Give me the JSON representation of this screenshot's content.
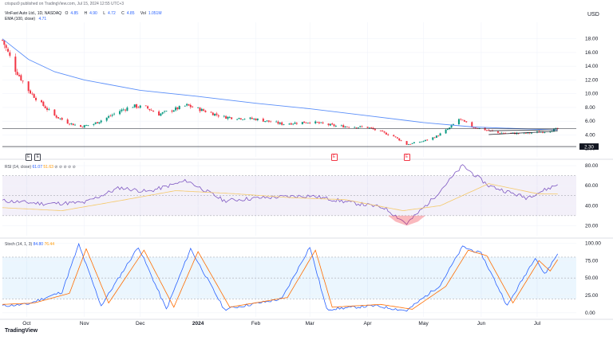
{
  "header": {
    "published": "crispus9 published on TradingView.com, Jul 15, 2024 12:55 UTC+3",
    "currency": "USD"
  },
  "legend": {
    "symbol": "VinFast Auto Ltd., 1D, NASDAQ",
    "ohlc": [
      {
        "label": "O",
        "value": "4.85"
      },
      {
        "label": "H",
        "value": "4.90"
      },
      {
        "label": "L",
        "value": "4.72"
      },
      {
        "label": "C",
        "value": "4.85"
      },
      {
        "label": "Vol",
        "value": "1.051M"
      }
    ],
    "ema_label": "EMA (100, close)",
    "ema_value": "4.71"
  },
  "rsi_legend": {
    "label": "RSI (14, close)",
    "v1": "61.07",
    "v2": "51.63",
    "dots": "⊘ ⊘ ⊘ ⊘ ⊘"
  },
  "stoch_legend": {
    "label": "Stoch (14, 1, 3)",
    "v1": "84.80",
    "v2": "76.44"
  },
  "price_tag": "2.30",
  "events": [
    {
      "label": "E",
      "color": "#434651",
      "date": "2023-10-02"
    },
    {
      "label": "E",
      "color": "#434651",
      "date": "2023-10-07"
    },
    {
      "label": "E",
      "color": "#f23645",
      "date": "2024-03-14"
    },
    {
      "label": "E",
      "color": "#f23645",
      "date": "2024-04-22"
    }
  ],
  "logo": {
    "text": "TradingView"
  },
  "colors": {
    "up": "#089981",
    "down": "#f23645",
    "ema": "#5b8ff9",
    "rsi": "#7e57c2",
    "rsi_ma": "#f5c96a",
    "stoch_k": "#2962ff",
    "stoch_d": "#ff6d00",
    "band": "#7e57c2",
    "stoch_band": "#2196f3"
  },
  "chart_data": [
    {
      "type": "candlestick",
      "title": "VinFast Auto Ltd., 1D, NASDAQ",
      "x_ticks": [
        "Oct",
        "Nov",
        "Dec",
        "2024",
        "Feb",
        "Mar",
        "Apr",
        "May",
        "Jun",
        "Jul"
      ],
      "y_ticks": [
        "2.00",
        "4.00",
        "6.00",
        "8.00",
        "10.00",
        "12.00",
        "14.00",
        "16.00",
        "18.00"
      ],
      "ylim": [
        0.8,
        20.4
      ],
      "x_range": [
        "2023-09-18",
        "2024-07-22"
      ],
      "close_anchors": [
        [
          "2023-09-18",
          17.8
        ],
        [
          "2023-09-25",
          13.5
        ],
        [
          "2023-10-02",
          10.5
        ],
        [
          "2023-10-09",
          8.5
        ],
        [
          "2023-10-16",
          6.8
        ],
        [
          "2023-10-23",
          5.8
        ],
        [
          "2023-10-30",
          5.2
        ],
        [
          "2023-11-06",
          5.6
        ],
        [
          "2023-11-13",
          6.5
        ],
        [
          "2023-11-20",
          7.5
        ],
        [
          "2023-11-27",
          8.2
        ],
        [
          "2023-12-04",
          8.0
        ],
        [
          "2023-12-11",
          7.0
        ],
        [
          "2023-12-18",
          7.6
        ],
        [
          "2023-12-26",
          8.3
        ],
        [
          "2024-01-02",
          7.7
        ],
        [
          "2024-01-15",
          6.6
        ],
        [
          "2024-02-01",
          6.3
        ],
        [
          "2024-02-15",
          5.6
        ],
        [
          "2024-03-01",
          5.9
        ],
        [
          "2024-03-15",
          5.3
        ],
        [
          "2024-04-01",
          5.1
        ],
        [
          "2024-04-15",
          3.8
        ],
        [
          "2024-04-22",
          2.6
        ],
        [
          "2024-05-01",
          3.1
        ],
        [
          "2024-05-08",
          3.8
        ],
        [
          "2024-05-15",
          5.0
        ],
        [
          "2024-05-20",
          6.3
        ],
        [
          "2024-05-27",
          5.2
        ],
        [
          "2024-06-10",
          4.3
        ],
        [
          "2024-06-24",
          4.2
        ],
        [
          "2024-07-05",
          4.5
        ],
        [
          "2024-07-12",
          4.85
        ]
      ],
      "ema_anchors": [
        [
          "2023-09-18",
          18.0
        ],
        [
          "2023-10-02",
          15.0
        ],
        [
          "2023-10-16",
          13.2
        ],
        [
          "2023-11-01",
          12.0
        ],
        [
          "2023-12-01",
          10.5
        ],
        [
          "2024-01-01",
          9.6
        ],
        [
          "2024-02-01",
          8.6
        ],
        [
          "2024-03-01",
          7.8
        ],
        [
          "2024-04-01",
          6.8
        ],
        [
          "2024-05-01",
          5.8
        ],
        [
          "2024-05-28",
          5.15
        ],
        [
          "2024-07-12",
          4.71
        ]
      ],
      "hlines": [
        4.9,
        2.3
      ],
      "annotations": [
        "2.30"
      ]
    },
    {
      "type": "line",
      "title": "RSI (14, close)",
      "y_ticks": [
        "20.00",
        "40.00",
        "60.00",
        "80.00"
      ],
      "ylim": [
        10,
        84
      ],
      "bands": [
        30,
        50,
        70
      ],
      "series": [
        {
          "name": "",
          "anchors": [
            [
              "2023-09-18",
              45
            ],
            [
              "2023-10-10",
              42
            ],
            [
              "2023-11-01",
              43
            ],
            [
              "2023-11-20",
              58
            ],
            [
              "2023-12-05",
              54
            ],
            [
              "2023-12-26",
              65
            ],
            [
              "2024-01-15",
              45
            ],
            [
              "2024-02-05",
              48
            ],
            [
              "2024-03-01",
              50
            ],
            [
              "2024-03-20",
              44
            ],
            [
              "2024-04-10",
              38
            ],
            [
              "2024-04-22",
              22
            ],
            [
              "2024-05-05",
              45
            ],
            [
              "2024-05-22",
              80
            ],
            [
              "2024-06-05",
              60
            ],
            [
              "2024-06-25",
              48
            ],
            [
              "2024-07-12",
              61.07
            ]
          ]
        },
        {
          "name": "",
          "anchors": [
            [
              "2023-09-18",
              38
            ],
            [
              "2023-10-20",
              35
            ],
            [
              "2023-11-20",
              45
            ],
            [
              "2023-12-20",
              55
            ],
            [
              "2024-01-20",
              52
            ],
            [
              "2024-02-20",
              48
            ],
            [
              "2024-03-20",
              46
            ],
            [
              "2024-04-20",
              35
            ],
            [
              "2024-05-10",
              40
            ],
            [
              "2024-06-05",
              62
            ],
            [
              "2024-07-01",
              52
            ],
            [
              "2024-07-12",
              51.63
            ]
          ]
        }
      ]
    },
    {
      "type": "line",
      "title": "Stoch (14, 1, 3)",
      "y_ticks": [
        "0.00",
        "25.00",
        "50.00",
        "75.00",
        "100.00"
      ],
      "ylim": [
        -6,
        104
      ],
      "bands": [
        20,
        50,
        80
      ],
      "series": [
        {
          "name": "",
          "anchors": [
            [
              "2023-09-18",
              10
            ],
            [
              "2023-10-01",
              12
            ],
            [
              "2023-10-20",
              30
            ],
            [
              "2023-10-29",
              98
            ],
            [
              "2023-11-10",
              10
            ],
            [
              "2023-11-30",
              95
            ],
            [
              "2023-12-15",
              5
            ],
            [
              "2023-12-28",
              92
            ],
            [
              "2024-01-15",
              5
            ],
            [
              "2024-02-15",
              20
            ],
            [
              "2024-03-01",
              95
            ],
            [
              "2024-03-10",
              5
            ],
            [
              "2024-04-05",
              10
            ],
            [
              "2024-04-22",
              3
            ],
            [
              "2024-05-10",
              40
            ],
            [
              "2024-05-22",
              95
            ],
            [
              "2024-06-01",
              85
            ],
            [
              "2024-06-15",
              10
            ],
            [
              "2024-06-30",
              80
            ],
            [
              "2024-07-05",
              55
            ],
            [
              "2024-07-12",
              84.8
            ]
          ]
        },
        {
          "name": "",
          "anchors": [
            [
              "2023-09-18",
              12
            ],
            [
              "2023-10-05",
              14
            ],
            [
              "2023-10-24",
              28
            ],
            [
              "2023-11-02",
              92
            ],
            [
              "2023-11-14",
              14
            ],
            [
              "2023-12-03",
              90
            ],
            [
              "2023-12-19",
              8
            ],
            [
              "2024-01-01",
              88
            ],
            [
              "2024-01-18",
              8
            ],
            [
              "2024-02-18",
              22
            ],
            [
              "2024-03-04",
              90
            ],
            [
              "2024-03-13",
              8
            ],
            [
              "2024-04-08",
              12
            ],
            [
              "2024-04-25",
              5
            ],
            [
              "2024-05-13",
              38
            ],
            [
              "2024-05-25",
              90
            ],
            [
              "2024-06-04",
              82
            ],
            [
              "2024-06-18",
              14
            ],
            [
              "2024-07-02",
              75
            ],
            [
              "2024-07-08",
              60
            ],
            [
              "2024-07-12",
              76.44
            ]
          ]
        }
      ]
    }
  ]
}
